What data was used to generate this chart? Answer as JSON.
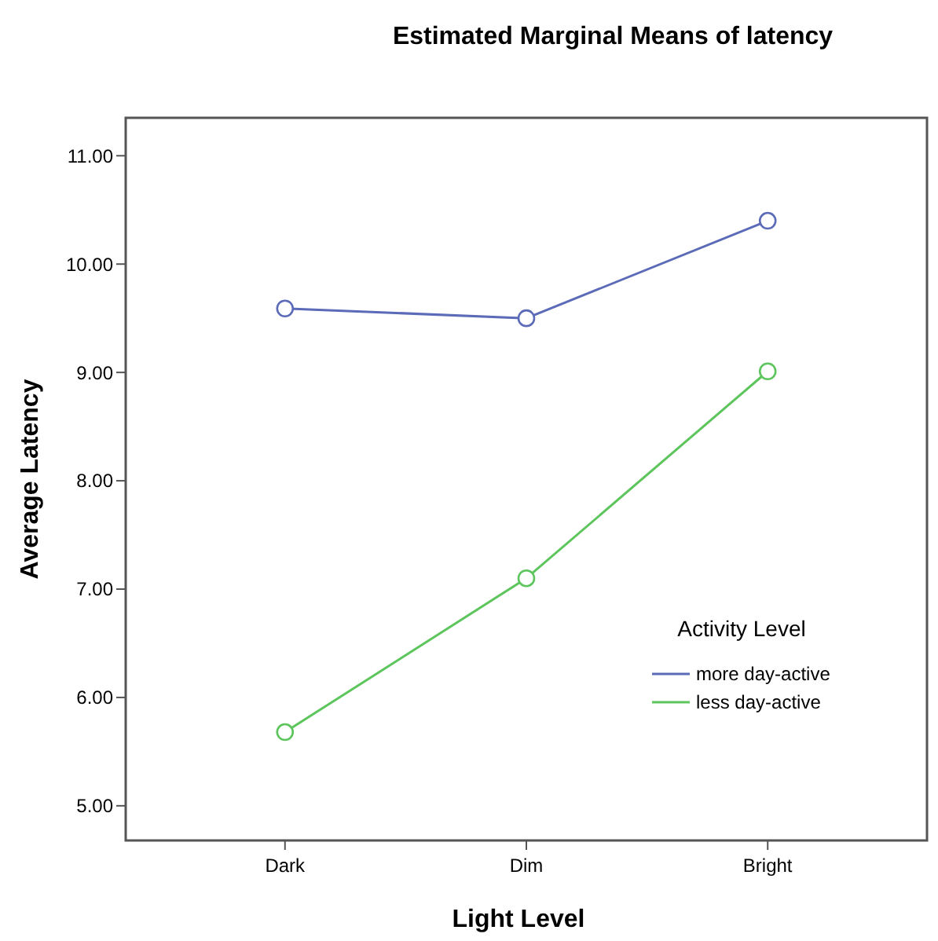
{
  "chart_data": {
    "type": "line",
    "title": "Estimated Marginal Means of latency",
    "xlabel": "Light Level",
    "ylabel": "Average Latency",
    "legend_title": "Activity Level",
    "categories": [
      "Dark",
      "Dim",
      "Bright"
    ],
    "series": [
      {
        "name": "more day-active",
        "color": "#5b6bb8",
        "values": [
          9.59,
          9.5,
          10.4
        ]
      },
      {
        "name": "less day-active",
        "color": "#5cc55c",
        "values": [
          5.68,
          7.1,
          9.01
        ]
      }
    ],
    "ylim": [
      4.68,
      11.35
    ],
    "yticks": [
      {
        "value": 5,
        "label": "5.00"
      },
      {
        "value": 6,
        "label": "6.00"
      },
      {
        "value": 7,
        "label": "7.00"
      },
      {
        "value": 8,
        "label": "8.00"
      },
      {
        "value": 9,
        "label": "9.00"
      },
      {
        "value": 10,
        "label": "10.00"
      },
      {
        "value": 11,
        "label": "11.00"
      }
    ],
    "marker": "circle",
    "legend": "bottom right",
    "grid": false,
    "line_style": "solid"
  }
}
